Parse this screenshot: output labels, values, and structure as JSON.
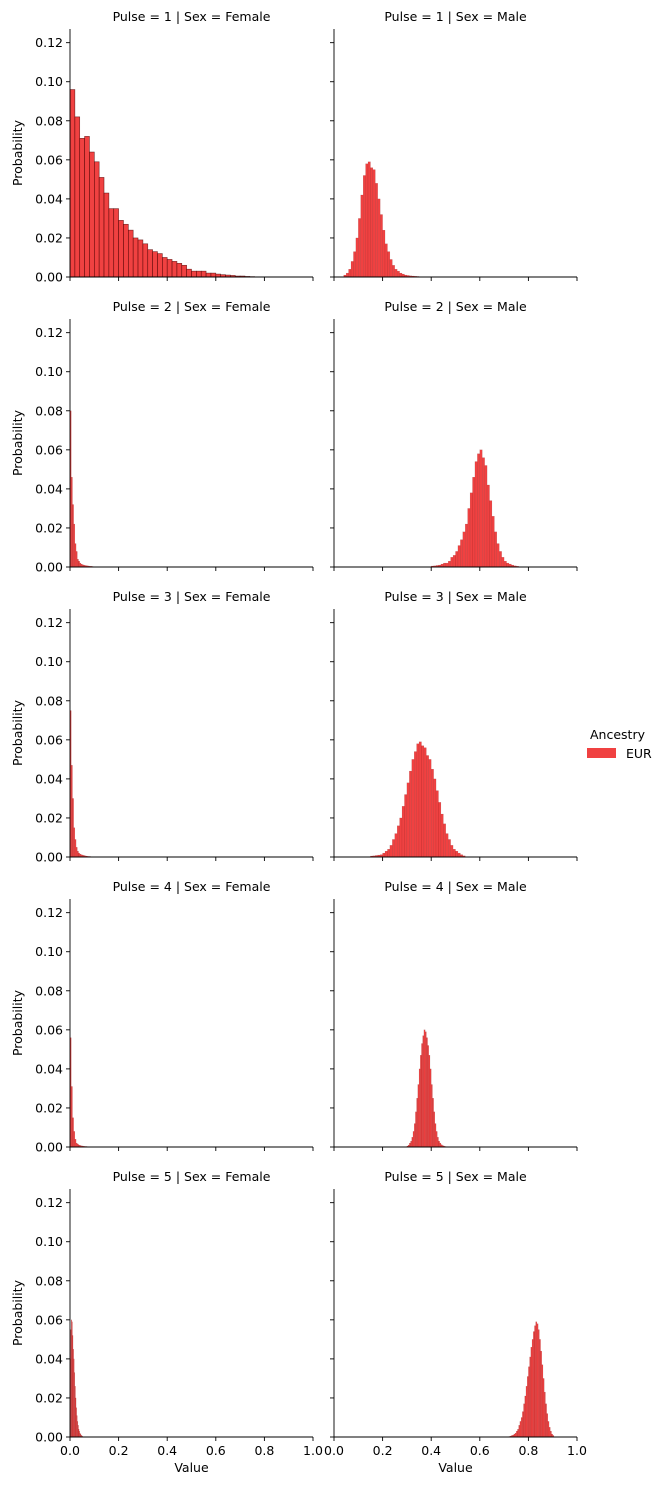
{
  "legend": {
    "title": "Ancestry",
    "entries": [
      "EUR"
    ],
    "color": "#ee2c2c",
    "placement": "right"
  },
  "chart_data": [
    {
      "type": "bar",
      "title": "Pulse = 1 | Sex = Female",
      "xlabel": "",
      "ylabel": "Probability",
      "xlim": [
        0,
        1
      ],
      "ylim": [
        0,
        0.127
      ],
      "bin_width": 0.02,
      "x": [
        0.0,
        0.02,
        0.04,
        0.06,
        0.08,
        0.1,
        0.12,
        0.14,
        0.16,
        0.18,
        0.2,
        0.22,
        0.24,
        0.26,
        0.28,
        0.3,
        0.32,
        0.34,
        0.36,
        0.38,
        0.4,
        0.42,
        0.44,
        0.46,
        0.48,
        0.5,
        0.52,
        0.54,
        0.56,
        0.58,
        0.6,
        0.62,
        0.64,
        0.66,
        0.68,
        0.7,
        0.72,
        0.74,
        0.76
      ],
      "values": [
        0.096,
        0.082,
        0.071,
        0.072,
        0.064,
        0.059,
        0.051,
        0.043,
        0.035,
        0.035,
        0.029,
        0.027,
        0.024,
        0.02,
        0.019,
        0.017,
        0.014,
        0.013,
        0.012,
        0.01,
        0.009,
        0.008,
        0.007,
        0.006,
        0.004,
        0.003,
        0.003,
        0.003,
        0.002,
        0.002,
        0.0015,
        0.0012,
        0.001,
        0.0008,
        0.0005,
        0.0005,
        0.0003,
        0.0002,
        0.0001
      ]
    },
    {
      "type": "bar",
      "title": "Pulse = 1 | Sex = Male",
      "xlabel": "",
      "ylabel": "",
      "xlim": [
        0,
        1
      ],
      "ylim": [
        0,
        0.127
      ],
      "bin_width": 0.01,
      "x": [
        0.04,
        0.05,
        0.06,
        0.07,
        0.08,
        0.09,
        0.1,
        0.11,
        0.12,
        0.13,
        0.14,
        0.15,
        0.16,
        0.17,
        0.18,
        0.19,
        0.2,
        0.21,
        0.22,
        0.23,
        0.24,
        0.25,
        0.26,
        0.27,
        0.28,
        0.29,
        0.3,
        0.31,
        0.32,
        0.33,
        0.34
      ],
      "values": [
        0.001,
        0.002,
        0.004,
        0.008,
        0.013,
        0.02,
        0.03,
        0.042,
        0.052,
        0.058,
        0.059,
        0.056,
        0.055,
        0.048,
        0.04,
        0.032,
        0.024,
        0.017,
        0.013,
        0.009,
        0.006,
        0.004,
        0.003,
        0.002,
        0.0015,
        0.001,
        0.0008,
        0.0006,
        0.0005,
        0.0004,
        0.0003
      ]
    },
    {
      "type": "bar",
      "title": "Pulse = 2 | Sex = Female",
      "xlabel": "",
      "ylabel": "Probability",
      "xlim": [
        0,
        1
      ],
      "ylim": [
        0,
        0.127
      ],
      "bin_width": 0.005,
      "x": [
        0.0,
        0.005,
        0.01,
        0.015,
        0.02,
        0.025,
        0.03,
        0.035,
        0.04,
        0.045,
        0.05,
        0.055,
        0.06,
        0.065,
        0.07,
        0.075,
        0.08,
        0.085,
        0.09
      ],
      "values": [
        0.08,
        0.046,
        0.032,
        0.022,
        0.012,
        0.008,
        0.004,
        0.003,
        0.002,
        0.0015,
        0.0012,
        0.001,
        0.0008,
        0.0007,
        0.0006,
        0.0005,
        0.0004,
        0.0004,
        0.0003
      ]
    },
    {
      "type": "bar",
      "title": "Pulse = 2 | Sex = Male",
      "xlabel": "",
      "ylabel": "",
      "xlim": [
        0,
        1
      ],
      "ylim": [
        0,
        0.127
      ],
      "bin_width": 0.01,
      "x": [
        0.4,
        0.41,
        0.42,
        0.43,
        0.44,
        0.45,
        0.46,
        0.47,
        0.48,
        0.49,
        0.5,
        0.51,
        0.52,
        0.53,
        0.54,
        0.55,
        0.56,
        0.57,
        0.58,
        0.59,
        0.6,
        0.61,
        0.62,
        0.63,
        0.64,
        0.65,
        0.66,
        0.67,
        0.68,
        0.69,
        0.7,
        0.71,
        0.72,
        0.73,
        0.74,
        0.75
      ],
      "values": [
        0.0005,
        0.0006,
        0.0008,
        0.001,
        0.0015,
        0.002,
        0.002,
        0.003,
        0.005,
        0.006,
        0.008,
        0.011,
        0.014,
        0.018,
        0.022,
        0.03,
        0.038,
        0.046,
        0.054,
        0.058,
        0.06,
        0.056,
        0.052,
        0.042,
        0.034,
        0.026,
        0.018,
        0.012,
        0.008,
        0.005,
        0.003,
        0.002,
        0.0015,
        0.001,
        0.0006,
        0.0004
      ]
    },
    {
      "type": "bar",
      "title": "Pulse = 3 | Sex = Female",
      "xlabel": "",
      "ylabel": "Probability",
      "xlim": [
        0,
        1
      ],
      "ylim": [
        0,
        0.127
      ],
      "bin_width": 0.005,
      "x": [
        0.0,
        0.005,
        0.01,
        0.015,
        0.02,
        0.025,
        0.03,
        0.035,
        0.04,
        0.045,
        0.05,
        0.055,
        0.06,
        0.065,
        0.07,
        0.075,
        0.08
      ],
      "values": [
        0.075,
        0.047,
        0.03,
        0.015,
        0.009,
        0.005,
        0.003,
        0.002,
        0.0015,
        0.0012,
        0.001,
        0.0008,
        0.0006,
        0.0005,
        0.0004,
        0.0003,
        0.0003
      ]
    },
    {
      "type": "bar",
      "title": "Pulse = 3 | Sex = Male",
      "xlabel": "",
      "ylabel": "",
      "xlim": [
        0,
        1
      ],
      "ylim": [
        0,
        0.127
      ],
      "bin_width": 0.01,
      "x": [
        0.15,
        0.16,
        0.17,
        0.18,
        0.19,
        0.2,
        0.21,
        0.22,
        0.23,
        0.24,
        0.25,
        0.26,
        0.27,
        0.28,
        0.29,
        0.3,
        0.31,
        0.32,
        0.33,
        0.34,
        0.35,
        0.36,
        0.37,
        0.38,
        0.39,
        0.4,
        0.41,
        0.42,
        0.43,
        0.44,
        0.45,
        0.46,
        0.47,
        0.48,
        0.49,
        0.5,
        0.51,
        0.52,
        0.53
      ],
      "values": [
        0.0005,
        0.0006,
        0.0008,
        0.001,
        0.0012,
        0.002,
        0.003,
        0.004,
        0.006,
        0.009,
        0.012,
        0.016,
        0.02,
        0.026,
        0.032,
        0.038,
        0.044,
        0.05,
        0.054,
        0.058,
        0.059,
        0.057,
        0.056,
        0.052,
        0.05,
        0.045,
        0.04,
        0.034,
        0.028,
        0.022,
        0.017,
        0.012,
        0.009,
        0.006,
        0.004,
        0.003,
        0.002,
        0.0012,
        0.0006
      ]
    },
    {
      "type": "bar",
      "title": "Pulse = 4 | Sex = Female",
      "xlabel": "",
      "ylabel": "Probability",
      "xlim": [
        0,
        1
      ],
      "ylim": [
        0,
        0.127
      ],
      "bin_width": 0.005,
      "x": [
        0.0,
        0.005,
        0.01,
        0.015,
        0.02,
        0.025,
        0.03,
        0.035,
        0.04,
        0.045,
        0.05,
        0.055,
        0.06,
        0.065,
        0.07
      ],
      "values": [
        0.056,
        0.031,
        0.015,
        0.008,
        0.004,
        0.002,
        0.0015,
        0.001,
        0.0008,
        0.0006,
        0.0005,
        0.0004,
        0.0003,
        0.0003,
        0.0002
      ]
    },
    {
      "type": "bar",
      "title": "Pulse = 4 | Sex = Male",
      "xlabel": "",
      "ylabel": "",
      "xlim": [
        0,
        1
      ],
      "ylim": [
        0,
        0.127
      ],
      "bin_width": 0.005,
      "x": [
        0.3,
        0.305,
        0.31,
        0.315,
        0.32,
        0.325,
        0.33,
        0.335,
        0.34,
        0.345,
        0.35,
        0.355,
        0.36,
        0.365,
        0.37,
        0.375,
        0.38,
        0.385,
        0.39,
        0.395,
        0.4,
        0.405,
        0.41,
        0.415,
        0.42,
        0.425,
        0.43,
        0.435,
        0.44,
        0.445,
        0.45,
        0.455,
        0.46
      ],
      "values": [
        0.0005,
        0.001,
        0.002,
        0.003,
        0.005,
        0.008,
        0.012,
        0.018,
        0.025,
        0.032,
        0.04,
        0.047,
        0.053,
        0.057,
        0.06,
        0.059,
        0.056,
        0.052,
        0.047,
        0.04,
        0.032,
        0.025,
        0.018,
        0.012,
        0.008,
        0.005,
        0.003,
        0.002,
        0.0012,
        0.0008,
        0.0005,
        0.0003,
        0.0002
      ]
    },
    {
      "type": "bar",
      "title": "Pulse = 5 | Sex = Female",
      "xlabel": "Value",
      "ylabel": "Probability",
      "xlim": [
        0,
        1
      ],
      "ylim": [
        0,
        0.127
      ],
      "bin_width": 0.0025,
      "x": [
        0.0,
        0.0025,
        0.005,
        0.0075,
        0.01,
        0.0125,
        0.015,
        0.0175,
        0.02,
        0.0225,
        0.025,
        0.0275,
        0.03,
        0.0325,
        0.035,
        0.0375,
        0.04,
        0.0425,
        0.045,
        0.0475,
        0.05
      ],
      "values": [
        0.04,
        0.055,
        0.06,
        0.059,
        0.052,
        0.045,
        0.04,
        0.033,
        0.026,
        0.02,
        0.015,
        0.011,
        0.008,
        0.006,
        0.004,
        0.003,
        0.002,
        0.0015,
        0.001,
        0.0006,
        0.0004
      ]
    },
    {
      "type": "bar",
      "title": "Pulse = 5 | Sex = Male",
      "xlabel": "Value",
      "ylabel": "",
      "xlim": [
        0,
        1
      ],
      "ylim": [
        0,
        0.127
      ],
      "bin_width": 0.005,
      "x": [
        0.72,
        0.725,
        0.73,
        0.735,
        0.74,
        0.745,
        0.75,
        0.755,
        0.76,
        0.765,
        0.77,
        0.775,
        0.78,
        0.785,
        0.79,
        0.795,
        0.8,
        0.805,
        0.81,
        0.815,
        0.82,
        0.825,
        0.83,
        0.835,
        0.84,
        0.845,
        0.85,
        0.855,
        0.86,
        0.865,
        0.87,
        0.875,
        0.88,
        0.885,
        0.89,
        0.895,
        0.9
      ],
      "values": [
        0.0003,
        0.0005,
        0.0008,
        0.001,
        0.0015,
        0.002,
        0.003,
        0.004,
        0.006,
        0.008,
        0.01,
        0.013,
        0.017,
        0.021,
        0.026,
        0.031,
        0.036,
        0.041,
        0.046,
        0.05,
        0.054,
        0.057,
        0.059,
        0.058,
        0.055,
        0.05,
        0.044,
        0.037,
        0.03,
        0.023,
        0.017,
        0.012,
        0.008,
        0.005,
        0.003,
        0.0015,
        0.0008
      ]
    }
  ]
}
